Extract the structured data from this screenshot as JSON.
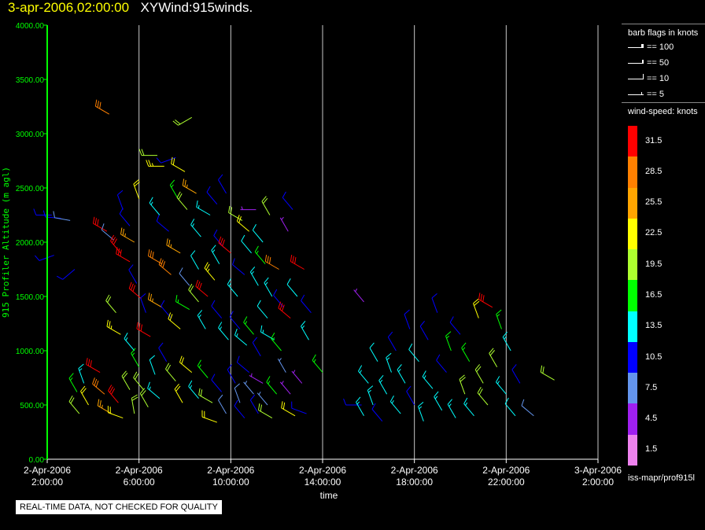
{
  "header": {
    "date_time": "3-apr-2006,02:00:00",
    "product": "XYWind:915winds."
  },
  "legend": {
    "flags_title": "barb flags in knots",
    "flags": [
      {
        "label": "== 100"
      },
      {
        "label": "== 50"
      },
      {
        "label": "== 10"
      },
      {
        "label": "== 5"
      }
    ],
    "speed_title": "wind-speed: knots",
    "speed_bins": [
      {
        "label": "31.5",
        "color": "#ff0000"
      },
      {
        "label": "28.5",
        "color": "#ff8000"
      },
      {
        "label": "25.5",
        "color": "#ffa500"
      },
      {
        "label": "22.5",
        "color": "#ffff00"
      },
      {
        "label": "19.5",
        "color": "#adff2f"
      },
      {
        "label": "16.5",
        "color": "#00ff00"
      },
      {
        "label": "13.5",
        "color": "#00ffff"
      },
      {
        "label": "10.5",
        "color": "#0000ff"
      },
      {
        "label": "7.5",
        "color": "#6495ed"
      },
      {
        "label": "4.5",
        "color": "#a020f0"
      },
      {
        "label": "1.5",
        "color": "#ee82ee"
      }
    ],
    "source": "iss-mapr/prof915l"
  },
  "qc_note": "REAL-TIME DATA, NOT CHECKED FOR QUALITY",
  "chart_data": {
    "type": "scatter",
    "ylabel": "915 Profiler Altitude (m agl)",
    "xlabel": "time",
    "ylim": [
      0,
      4000
    ],
    "yticks": [
      "0.00",
      "500.00",
      "1000.00",
      "1500.00",
      "2000.00",
      "2500.00",
      "3000.00",
      "3500.00",
      "4000.00"
    ],
    "xlim_hours": [
      0,
      24
    ],
    "xticks": [
      {
        "h": 0,
        "date": "2-Apr-2006",
        "time": "2:00:00"
      },
      {
        "h": 4,
        "date": "2-Apr-2006",
        "time": "6:00:00"
      },
      {
        "h": 8,
        "date": "2-Apr-2006",
        "time": "10:00:00"
      },
      {
        "h": 12,
        "date": "2-Apr-2006",
        "time": "14:00:00"
      },
      {
        "h": 16,
        "date": "2-Apr-2006",
        "time": "18:00:00"
      },
      {
        "h": 20,
        "date": "2-Apr-2006",
        "time": "22:00:00"
      },
      {
        "h": 24,
        "date": "3-Apr-2006",
        "time": "2:00:00"
      }
    ],
    "grid": "vertical",
    "axis_color": "#00ff00",
    "grid_color": "#c8c8c8",
    "barb_points": [
      {
        "hour": 0.2,
        "alt": 2250,
        "speed": 9,
        "dir": 270
      },
      {
        "hour": 0.6,
        "alt": 2220,
        "speed": 10,
        "dir": 275
      },
      {
        "hour": 1.0,
        "alt": 2200,
        "speed": 8,
        "dir": 280
      },
      {
        "hour": 0.3,
        "alt": 1880,
        "speed": 10,
        "dir": 250
      },
      {
        "hour": 1.2,
        "alt": 1750,
        "speed": 10,
        "dir": 230
      },
      {
        "hour": 1.3,
        "alt": 620,
        "speed": 16,
        "dir": 330
      },
      {
        "hour": 1.4,
        "alt": 420,
        "speed": 18,
        "dir": 320
      },
      {
        "hour": 1.6,
        "alt": 700,
        "speed": 14,
        "dir": 340
      },
      {
        "hour": 1.8,
        "alt": 500,
        "speed": 22,
        "dir": 330
      },
      {
        "hour": 2.3,
        "alt": 800,
        "speed": 30,
        "dir": 300
      },
      {
        "hour": 2.5,
        "alt": 600,
        "speed": 28,
        "dir": 310
      },
      {
        "hour": 2.8,
        "alt": 420,
        "speed": 24,
        "dir": 300
      },
      {
        "hour": 3.1,
        "alt": 520,
        "speed": 30,
        "dir": 320
      },
      {
        "hour": 3.3,
        "alt": 380,
        "speed": 22,
        "dir": 290
      },
      {
        "hour": 3.6,
        "alt": 640,
        "speed": 20,
        "dir": 330
      },
      {
        "hour": 3.8,
        "alt": 420,
        "speed": 18,
        "dir": 350
      },
      {
        "hour": 2.7,
        "alt": 3180,
        "speed": 28,
        "dir": 300
      },
      {
        "hour": 3.3,
        "alt": 2300,
        "speed": 10,
        "dir": 340
      },
      {
        "hour": 3.6,
        "alt": 2150,
        "speed": 11,
        "dir": 320
      },
      {
        "hour": 3.8,
        "alt": 2000,
        "speed": 24,
        "dir": 300
      },
      {
        "hour": 4.0,
        "alt": 2400,
        "speed": 22,
        "dir": 340
      },
      {
        "hour": 2.6,
        "alt": 2100,
        "speed": 30,
        "dir": 300
      },
      {
        "hour": 2.9,
        "alt": 2020,
        "speed": 8,
        "dir": 310
      },
      {
        "hour": 3.2,
        "alt": 1900,
        "speed": 32,
        "dir": 320
      },
      {
        "hour": 3.6,
        "alt": 1820,
        "speed": 30,
        "dir": 300
      },
      {
        "hour": 3.9,
        "alt": 1620,
        "speed": 11,
        "dir": 330
      },
      {
        "hour": 4.1,
        "alt": 1480,
        "speed": 32,
        "dir": 310
      },
      {
        "hour": 4.3,
        "alt": 1350,
        "speed": 11,
        "dir": 340
      },
      {
        "hour": 3.0,
        "alt": 1350,
        "speed": 20,
        "dir": 320
      },
      {
        "hour": 3.2,
        "alt": 1150,
        "speed": 23,
        "dir": 300
      },
      {
        "hour": 3.8,
        "alt": 1000,
        "speed": 14,
        "dir": 320
      },
      {
        "hour": 4.5,
        "alt": 1130,
        "speed": 32,
        "dir": 300
      },
      {
        "hour": 4.0,
        "alt": 850,
        "speed": 17,
        "dir": 330
      },
      {
        "hour": 4.2,
        "alt": 640,
        "speed": 18,
        "dir": 320
      },
      {
        "hour": 4.4,
        "alt": 480,
        "speed": 20,
        "dir": 330
      },
      {
        "hour": 4.7,
        "alt": 780,
        "speed": 12,
        "dir": 340
      },
      {
        "hour": 4.9,
        "alt": 560,
        "speed": 14,
        "dir": 310
      },
      {
        "hour": 5.2,
        "alt": 900,
        "speed": 10,
        "dir": 330
      },
      {
        "hour": 5.6,
        "alt": 720,
        "speed": 20,
        "dir": 320
      },
      {
        "hour": 5.9,
        "alt": 520,
        "speed": 22,
        "dir": 330
      },
      {
        "hour": 6.3,
        "alt": 800,
        "speed": 21,
        "dir": 310
      },
      {
        "hour": 6.6,
        "alt": 560,
        "speed": 14,
        "dir": 320
      },
      {
        "hour": 4.8,
        "alt": 2800,
        "speed": 18,
        "dir": 270
      },
      {
        "hour": 5.1,
        "alt": 2700,
        "speed": 23,
        "dir": 270
      },
      {
        "hour": 5.6,
        "alt": 2780,
        "speed": 10,
        "dir": 250
      },
      {
        "hour": 6.0,
        "alt": 2650,
        "speed": 22,
        "dir": 300
      },
      {
        "hour": 6.3,
        "alt": 3150,
        "speed": 20,
        "dir": 240
      },
      {
        "hour": 4.9,
        "alt": 2250,
        "speed": 14,
        "dir": 320
      },
      {
        "hour": 5.3,
        "alt": 2100,
        "speed": 11,
        "dir": 310
      },
      {
        "hour": 5.7,
        "alt": 2400,
        "speed": 17,
        "dir": 330
      },
      {
        "hour": 6.1,
        "alt": 2300,
        "speed": 20,
        "dir": 320
      },
      {
        "hour": 6.5,
        "alt": 2450,
        "speed": 24,
        "dir": 300
      },
      {
        "hour": 6.7,
        "alt": 2050,
        "speed": 14,
        "dir": 320
      },
      {
        "hour": 5.0,
        "alt": 1800,
        "speed": 28,
        "dir": 300
      },
      {
        "hour": 5.4,
        "alt": 1700,
        "speed": 29,
        "dir": 310
      },
      {
        "hour": 5.8,
        "alt": 1900,
        "speed": 24,
        "dir": 300
      },
      {
        "hour": 6.2,
        "alt": 1600,
        "speed": 8,
        "dir": 320
      },
      {
        "hour": 6.6,
        "alt": 1750,
        "speed": 12,
        "dir": 330
      },
      {
        "hour": 5.0,
        "alt": 1400,
        "speed": 25,
        "dir": 300
      },
      {
        "hour": 5.4,
        "alt": 1300,
        "speed": 10,
        "dir": 320
      },
      {
        "hour": 5.8,
        "alt": 1200,
        "speed": 22,
        "dir": 310
      },
      {
        "hour": 6.2,
        "alt": 1380,
        "speed": 17,
        "dir": 300
      },
      {
        "hour": 6.6,
        "alt": 1450,
        "speed": 18,
        "dir": 320
      },
      {
        "hour": 6.9,
        "alt": 1200,
        "speed": 14,
        "dir": 330
      },
      {
        "hour": 7.0,
        "alt": 750,
        "speed": 16,
        "dir": 320
      },
      {
        "hour": 7.2,
        "alt": 520,
        "speed": 20,
        "dir": 300
      },
      {
        "hour": 7.4,
        "alt": 340,
        "speed": 22,
        "dir": 290
      },
      {
        "hour": 7.6,
        "alt": 620,
        "speed": 11,
        "dir": 320
      },
      {
        "hour": 7.8,
        "alt": 420,
        "speed": 8,
        "dir": 330
      },
      {
        "hour": 7.0,
        "alt": 1500,
        "speed": 30,
        "dir": 310
      },
      {
        "hour": 7.3,
        "alt": 1650,
        "speed": 23,
        "dir": 320
      },
      {
        "hour": 7.5,
        "alt": 1800,
        "speed": 13,
        "dir": 330
      },
      {
        "hour": 7.7,
        "alt": 1950,
        "speed": 11,
        "dir": 320
      },
      {
        "hour": 7.1,
        "alt": 2250,
        "speed": 14,
        "dir": 300
      },
      {
        "hour": 7.4,
        "alt": 2350,
        "speed": 10,
        "dir": 320
      },
      {
        "hour": 7.8,
        "alt": 2450,
        "speed": 11,
        "dir": 330
      },
      {
        "hour": 7.6,
        "alt": 1300,
        "speed": 10,
        "dir": 320
      },
      {
        "hour": 7.9,
        "alt": 1100,
        "speed": 14,
        "dir": 320
      },
      {
        "hour": 8.0,
        "alt": 1900,
        "speed": 30,
        "dir": 310
      },
      {
        "hour": 8.2,
        "alt": 700,
        "speed": 10,
        "dir": 330
      },
      {
        "hour": 8.4,
        "alt": 520,
        "speed": 8,
        "dir": 340
      },
      {
        "hour": 8.6,
        "alt": 380,
        "speed": 10,
        "dir": 320
      },
      {
        "hour": 8.8,
        "alt": 800,
        "speed": 9,
        "dir": 310
      },
      {
        "hour": 9.0,
        "alt": 600,
        "speed": 7,
        "dir": 320
      },
      {
        "hour": 9.2,
        "alt": 420,
        "speed": 10,
        "dir": 330
      },
      {
        "hour": 9.4,
        "alt": 700,
        "speed": 5,
        "dir": 300
      },
      {
        "hour": 9.6,
        "alt": 500,
        "speed": 6,
        "dir": 320
      },
      {
        "hour": 9.8,
        "alt": 380,
        "speed": 20,
        "dir": 300
      },
      {
        "hour": 10.0,
        "alt": 600,
        "speed": 16,
        "dir": 320
      },
      {
        "hour": 8.3,
        "alt": 1500,
        "speed": 14,
        "dir": 320
      },
      {
        "hour": 8.6,
        "alt": 1700,
        "speed": 11,
        "dir": 310
      },
      {
        "hour": 8.9,
        "alt": 1900,
        "speed": 12,
        "dir": 320
      },
      {
        "hour": 9.2,
        "alt": 1600,
        "speed": 14,
        "dir": 330
      },
      {
        "hour": 9.5,
        "alt": 1800,
        "speed": 17,
        "dir": 320
      },
      {
        "hour": 9.8,
        "alt": 1500,
        "speed": 13,
        "dir": 330
      },
      {
        "hour": 10.1,
        "alt": 1750,
        "speed": 28,
        "dir": 300
      },
      {
        "hour": 8.5,
        "alt": 2200,
        "speed": 20,
        "dir": 300
      },
      {
        "hour": 8.8,
        "alt": 2100,
        "speed": 22,
        "dir": 310
      },
      {
        "hour": 9.1,
        "alt": 2300,
        "speed": 5,
        "dir": 270
      },
      {
        "hour": 9.4,
        "alt": 2000,
        "speed": 12,
        "dir": 320
      },
      {
        "hour": 9.7,
        "alt": 2250,
        "speed": 20,
        "dir": 330
      },
      {
        "hour": 8.4,
        "alt": 1200,
        "speed": 11,
        "dir": 320
      },
      {
        "hour": 8.7,
        "alt": 1050,
        "speed": 14,
        "dir": 310
      },
      {
        "hour": 9.0,
        "alt": 1150,
        "speed": 16,
        "dir": 320
      },
      {
        "hour": 9.3,
        "alt": 950,
        "speed": 10,
        "dir": 330
      },
      {
        "hour": 9.6,
        "alt": 1300,
        "speed": 12,
        "dir": 320
      },
      {
        "hour": 9.9,
        "alt": 1100,
        "speed": 14,
        "dir": 300
      },
      {
        "hour": 10.2,
        "alt": 1000,
        "speed": 17,
        "dir": 320
      },
      {
        "hour": 10.4,
        "alt": 800,
        "speed": 6,
        "dir": 330
      },
      {
        "hour": 10.6,
        "alt": 600,
        "speed": 5,
        "dir": 320
      },
      {
        "hour": 10.8,
        "alt": 400,
        "speed": 22,
        "dir": 300
      },
      {
        "hour": 11.1,
        "alt": 700,
        "speed": 5,
        "dir": 320
      },
      {
        "hour": 11.3,
        "alt": 420,
        "speed": 10,
        "dir": 290
      },
      {
        "hour": 10.3,
        "alt": 1400,
        "speed": 10,
        "dir": 320
      },
      {
        "hour": 10.6,
        "alt": 1300,
        "speed": 32,
        "dir": 310
      },
      {
        "hour": 10.9,
        "alt": 1500,
        "speed": 12,
        "dir": 320
      },
      {
        "hour": 11.2,
        "alt": 1750,
        "speed": 30,
        "dir": 300
      },
      {
        "hour": 11.4,
        "alt": 1100,
        "speed": 14,
        "dir": 330
      },
      {
        "hour": 11.5,
        "alt": 1350,
        "speed": 10,
        "dir": 320
      },
      {
        "hour": 10.5,
        "alt": 2100,
        "speed": 5,
        "dir": 330
      },
      {
        "hour": 10.7,
        "alt": 2300,
        "speed": 10,
        "dir": 320
      },
      {
        "hour": 13.7,
        "alt": 500,
        "speed": 11,
        "dir": 270
      },
      {
        "hour": 12.0,
        "alt": 800,
        "speed": 16,
        "dir": 320
      },
      {
        "hour": 13.8,
        "alt": 1450,
        "speed": 5,
        "dir": 320
      },
      {
        "hour": 13.8,
        "alt": 400,
        "speed": 13,
        "dir": 330
      },
      {
        "hour": 14.0,
        "alt": 700,
        "speed": 14,
        "dir": 320
      },
      {
        "hour": 14.2,
        "alt": 500,
        "speed": 13,
        "dir": 340
      },
      {
        "hour": 14.4,
        "alt": 900,
        "speed": 12,
        "dir": 330
      },
      {
        "hour": 14.6,
        "alt": 350,
        "speed": 10,
        "dir": 320
      },
      {
        "hour": 14.8,
        "alt": 600,
        "speed": 14,
        "dir": 330
      },
      {
        "hour": 15.0,
        "alt": 800,
        "speed": 13,
        "dir": 340
      },
      {
        "hour": 15.2,
        "alt": 1000,
        "speed": 10,
        "dir": 330
      },
      {
        "hour": 15.4,
        "alt": 420,
        "speed": 13,
        "dir": 320
      },
      {
        "hour": 15.6,
        "alt": 700,
        "speed": 14,
        "dir": 330
      },
      {
        "hour": 15.8,
        "alt": 1200,
        "speed": 10,
        "dir": 340
      },
      {
        "hour": 16.0,
        "alt": 500,
        "speed": 10,
        "dir": 330
      },
      {
        "hour": 16.2,
        "alt": 900,
        "speed": 12,
        "dir": 320
      },
      {
        "hour": 16.4,
        "alt": 350,
        "speed": 14,
        "dir": 340
      },
      {
        "hour": 16.6,
        "alt": 1100,
        "speed": 10,
        "dir": 330
      },
      {
        "hour": 16.8,
        "alt": 650,
        "speed": 13,
        "dir": 320
      },
      {
        "hour": 17.0,
        "alt": 1350,
        "speed": 10,
        "dir": 340
      },
      {
        "hour": 17.2,
        "alt": 450,
        "speed": 14,
        "dir": 330
      },
      {
        "hour": 17.4,
        "alt": 800,
        "speed": 10,
        "dir": 320
      },
      {
        "hour": 17.6,
        "alt": 1000,
        "speed": 16,
        "dir": 340
      },
      {
        "hour": 17.8,
        "alt": 380,
        "speed": 13,
        "dir": 330
      },
      {
        "hour": 18.0,
        "alt": 1150,
        "speed": 10,
        "dir": 320
      },
      {
        "hour": 18.2,
        "alt": 600,
        "speed": 20,
        "dir": 340
      },
      {
        "hour": 18.4,
        "alt": 900,
        "speed": 17,
        "dir": 330
      },
      {
        "hour": 18.6,
        "alt": 400,
        "speed": 14,
        "dir": 320
      },
      {
        "hour": 18.8,
        "alt": 1300,
        "speed": 22,
        "dir": 340
      },
      {
        "hour": 19.0,
        "alt": 700,
        "speed": 18,
        "dir": 330
      },
      {
        "hour": 19.2,
        "alt": 500,
        "speed": 20,
        "dir": 320
      },
      {
        "hour": 19.4,
        "alt": 1400,
        "speed": 30,
        "dir": 300
      },
      {
        "hour": 19.6,
        "alt": 850,
        "speed": 18,
        "dir": 330
      },
      {
        "hour": 19.8,
        "alt": 1200,
        "speed": 16,
        "dir": 340
      },
      {
        "hour": 20.0,
        "alt": 600,
        "speed": 14,
        "dir": 320
      },
      {
        "hour": 20.2,
        "alt": 1000,
        "speed": 13,
        "dir": 330
      },
      {
        "hour": 20.4,
        "alt": 400,
        "speed": 12,
        "dir": 320
      },
      {
        "hour": 20.6,
        "alt": 700,
        "speed": 10,
        "dir": 330
      },
      {
        "hour": 21.2,
        "alt": 400,
        "speed": 8,
        "dir": 310
      },
      {
        "hour": 22.1,
        "alt": 730,
        "speed": 18,
        "dir": 300
      }
    ]
  }
}
